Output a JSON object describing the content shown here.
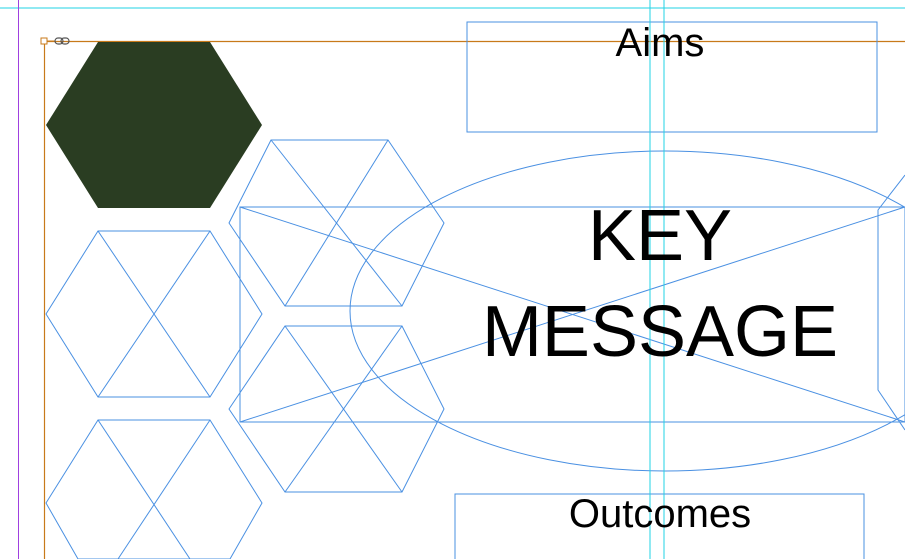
{
  "document": {
    "aims_label": "Aims",
    "key_message_line1": "KEY",
    "key_message_line2": "MESSAGE",
    "outcomes_label": "Outcomes"
  },
  "colors": {
    "frame_stroke": "#4a90e2",
    "guide_cyan": "#22d3e6",
    "margin_purple": "#a040e0",
    "page_edge_orange": "#c87a1a",
    "hexagon_fill": "#2a3d22",
    "text": "#000000"
  },
  "icons": {
    "link_icon": "chain-link-icon",
    "anchor_icon": "frame-anchor-icon"
  }
}
